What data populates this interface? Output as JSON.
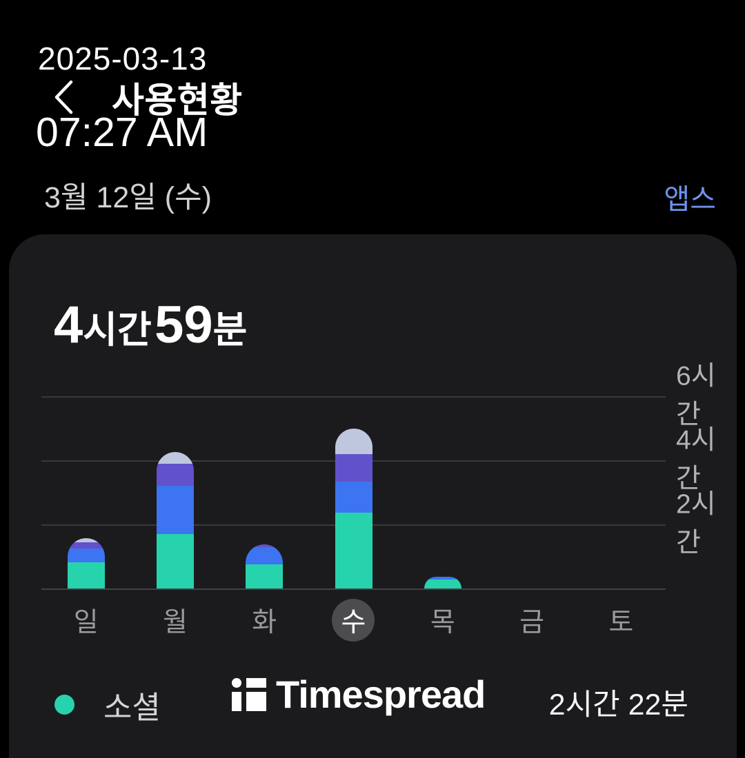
{
  "overlay": {
    "date": "2025-03-13",
    "time": "07:27 AM"
  },
  "header": {
    "title": "사용현황"
  },
  "date_row": {
    "date_label": "3월 12일 (수)",
    "apps_link": "앱스"
  },
  "summary": {
    "hours": "4",
    "hours_unit": "시간",
    "minutes": "59",
    "minutes_unit": "분"
  },
  "chart_data": {
    "type": "bar",
    "stacked": true,
    "categories": [
      "일",
      "월",
      "화",
      "수",
      "목",
      "금",
      "토"
    ],
    "selected_category": "수",
    "unit": "minutes",
    "series": [
      {
        "name": "소셜",
        "color": "#26d3ac",
        "values": [
          49,
          102,
          45,
          142,
          17,
          0,
          0
        ]
      },
      {
        "name": "",
        "color": "#3d74f1",
        "values": [
          26,
          90,
          32,
          58,
          5,
          0,
          0
        ]
      },
      {
        "name": "",
        "color": "#6152cb",
        "values": [
          12,
          41,
          5,
          52,
          0,
          0,
          0
        ]
      },
      {
        "name": "",
        "color": "#bec7de",
        "values": [
          7,
          23,
          0,
          47,
          0,
          0,
          0
        ]
      }
    ],
    "y_ticks": [
      {
        "label": "2시간",
        "minutes": 120
      },
      {
        "label": "4시간",
        "minutes": 240
      },
      {
        "label": "6시간",
        "minutes": 360
      }
    ],
    "ylim_minutes": [
      0,
      420
    ],
    "grid": true,
    "tick_label_side": "right"
  },
  "legend": {
    "dot_color": "#26d3ac",
    "label": "소셜",
    "value": "2시간 22분"
  },
  "watermark": {
    "brand": "Timespread"
  }
}
